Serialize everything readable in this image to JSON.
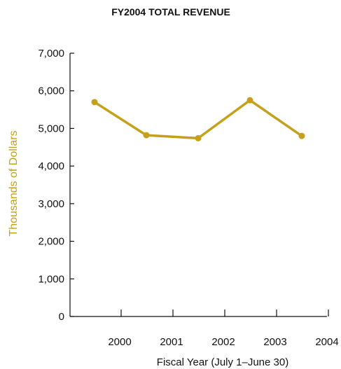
{
  "chart_data": {
    "type": "line",
    "title": "FY2004 TOTAL REVENUE",
    "xlabel": "Fiscal Year (July 1–June 30)",
    "ylabel": "Thousands of Dollars",
    "x_ticks": [
      "2000",
      "2001",
      "2002",
      "2003",
      "2004"
    ],
    "y_ticks": [
      "0",
      "1,000",
      "2,000",
      "3,000",
      "4,000",
      "5,000",
      "6,000",
      "7,000"
    ],
    "ylim": [
      0,
      7000
    ],
    "grid": false,
    "colors": {
      "series": "#C5A01A",
      "ylabel": "#C5A01A",
      "axis": "#111111"
    },
    "series": [
      {
        "values": [
          5700,
          4820,
          4740,
          5750,
          4800
        ]
      }
    ]
  }
}
